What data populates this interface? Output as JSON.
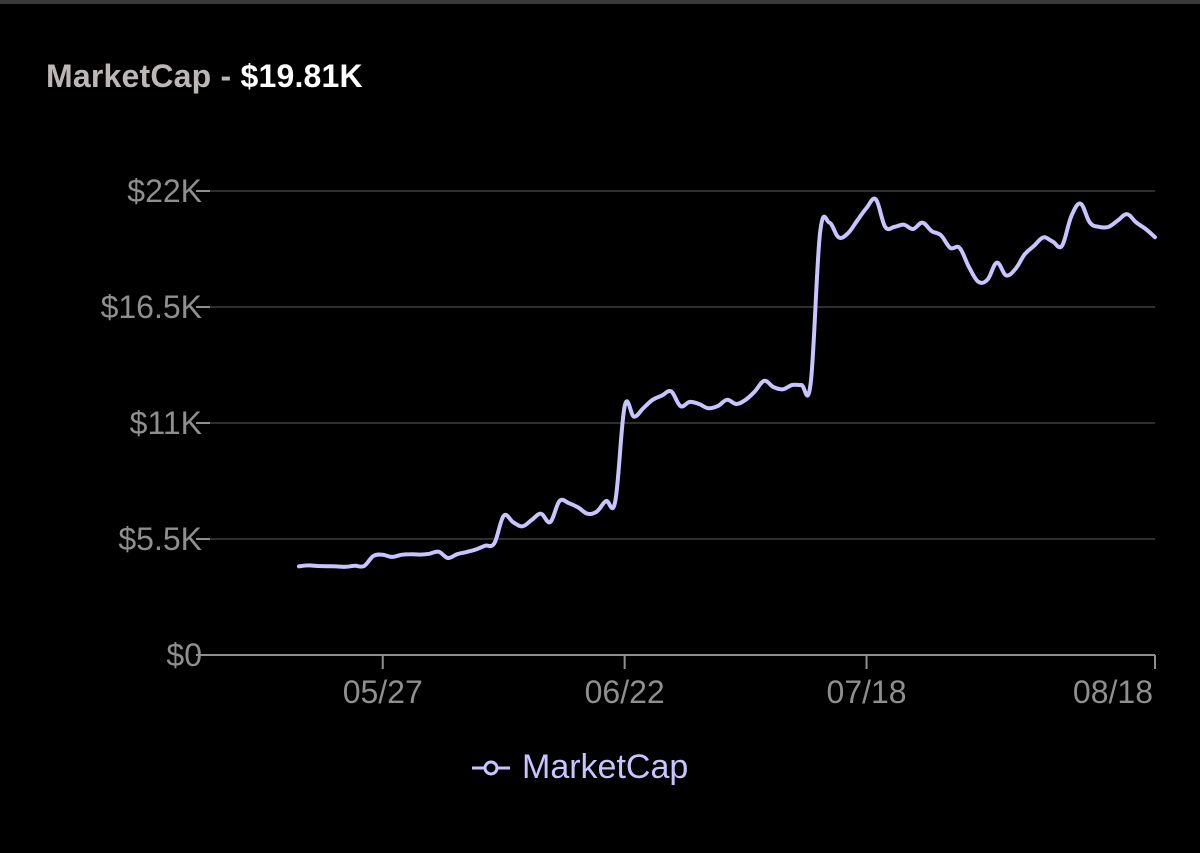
{
  "header": {
    "label": "MarketCap",
    "separator": " - ",
    "value": "$19.81K"
  },
  "colors": {
    "background": "#000000",
    "line": "#c8c4ff",
    "grid": "#2e2e2e",
    "axis": "#8f8f8f",
    "tick_text": "#8f8f8f"
  },
  "legend": {
    "label": "MarketCap",
    "icon": "line-circle-icon"
  },
  "chart_data": {
    "type": "line",
    "title": "",
    "xlabel": "",
    "ylabel": "",
    "ylim": [
      0,
      22000
    ],
    "yticks": [
      0,
      5500,
      11000,
      16500,
      22000
    ],
    "ytick_labels": [
      "$0",
      "$5.5K",
      "$11K",
      "$16.5K",
      "$22K"
    ],
    "xlim": [
      "05/18",
      "08/18"
    ],
    "xticks": [
      "05/27",
      "06/22",
      "07/18",
      "08/18"
    ],
    "xtick_labels": [
      "05/27",
      "06/22",
      "07/18",
      "08/18"
    ],
    "grid": true,
    "legend_position": "bottom-center",
    "series": [
      {
        "name": "MarketCap",
        "points": [
          [
            "05/18",
            4200
          ],
          [
            "05/19",
            4250
          ],
          [
            "05/20",
            4220
          ],
          [
            "05/21",
            4210
          ],
          [
            "05/22",
            4200
          ],
          [
            "05/23",
            4180
          ],
          [
            "05/24",
            4230
          ],
          [
            "05/25",
            4220
          ],
          [
            "05/26",
            4700
          ],
          [
            "05/27",
            4750
          ],
          [
            "05/28",
            4650
          ],
          [
            "05/29",
            4750
          ],
          [
            "05/30",
            4780
          ],
          [
            "05/31",
            4760
          ],
          [
            "06/01",
            4800
          ],
          [
            "06/02",
            4900
          ],
          [
            "06/03",
            4600
          ],
          [
            "06/04",
            4780
          ],
          [
            "06/05",
            4880
          ],
          [
            "06/06",
            5000
          ],
          [
            "06/07",
            5180
          ],
          [
            "06/08",
            5300
          ],
          [
            "06/09",
            6600
          ],
          [
            "06/10",
            6300
          ],
          [
            "06/11",
            6100
          ],
          [
            "06/12",
            6400
          ],
          [
            "06/13",
            6700
          ],
          [
            "06/14",
            6300
          ],
          [
            "06/15",
            7300
          ],
          [
            "06/16",
            7200
          ],
          [
            "06/17",
            7000
          ],
          [
            "06/18",
            6700
          ],
          [
            "06/19",
            6800
          ],
          [
            "06/20",
            7300
          ],
          [
            "06/21",
            7300
          ],
          [
            "06/22",
            11800
          ],
          [
            "06/23",
            11300
          ],
          [
            "06/24",
            11700
          ],
          [
            "06/25",
            12100
          ],
          [
            "06/26",
            12300
          ],
          [
            "06/27",
            12500
          ],
          [
            "06/28",
            11800
          ],
          [
            "06/29",
            12000
          ],
          [
            "06/30",
            11900
          ],
          [
            "07/01",
            11700
          ],
          [
            "07/02",
            11800
          ],
          [
            "07/03",
            12100
          ],
          [
            "07/04",
            11900
          ],
          [
            "07/05",
            12100
          ],
          [
            "07/06",
            12500
          ],
          [
            "07/07",
            13000
          ],
          [
            "07/08",
            12700
          ],
          [
            "07/09",
            12600
          ],
          [
            "07/10",
            12800
          ],
          [
            "07/11",
            12800
          ],
          [
            "07/12",
            12900
          ],
          [
            "07/13",
            20000
          ],
          [
            "07/14",
            20500
          ],
          [
            "07/15",
            19800
          ],
          [
            "07/16",
            20000
          ],
          [
            "07/17",
            20600
          ],
          [
            "07/18",
            21200
          ],
          [
            "07/19",
            21600
          ],
          [
            "07/20",
            20300
          ],
          [
            "07/21",
            20300
          ],
          [
            "07/22",
            20400
          ],
          [
            "07/23",
            20200
          ],
          [
            "07/24",
            20500
          ],
          [
            "07/25",
            20100
          ],
          [
            "07/26",
            19900
          ],
          [
            "07/27",
            19300
          ],
          [
            "07/28",
            19300
          ],
          [
            "07/29",
            18400
          ],
          [
            "07/30",
            17700
          ],
          [
            "07/31",
            17800
          ],
          [
            "08/01",
            18600
          ],
          [
            "08/02",
            18000
          ],
          [
            "08/03",
            18300
          ],
          [
            "08/04",
            19000
          ],
          [
            "08/05",
            19400
          ],
          [
            "08/06",
            19800
          ],
          [
            "08/07",
            19600
          ],
          [
            "08/08",
            19400
          ],
          [
            "08/09",
            20800
          ],
          [
            "08/10",
            21400
          ],
          [
            "08/11",
            20500
          ],
          [
            "08/12",
            20300
          ],
          [
            "08/13",
            20300
          ],
          [
            "08/14",
            20600
          ],
          [
            "08/15",
            20900
          ],
          [
            "08/16",
            20500
          ],
          [
            "08/17",
            20200
          ],
          [
            "08/18",
            19810
          ]
        ]
      }
    ]
  }
}
